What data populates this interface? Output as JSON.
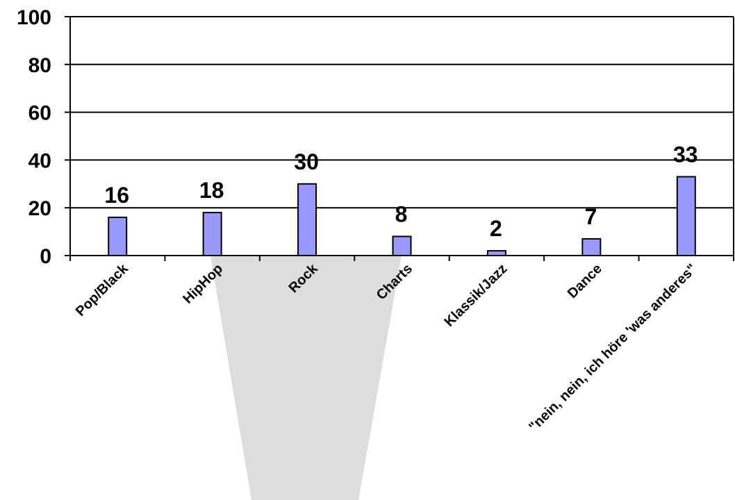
{
  "chart_data": {
    "type": "bar",
    "categories": [
      "Pop/Black",
      "HipHop",
      "Rock",
      "Charts",
      "Klassik/Jazz",
      "Dance",
      "\"nein, nein, ich höre 'was anderes\""
    ],
    "values": [
      16,
      18,
      30,
      8,
      2,
      7,
      33
    ],
    "data_labels": [
      "16",
      "18",
      "30",
      "8",
      "2",
      "7",
      "33"
    ],
    "title": "",
    "xlabel": "",
    "ylabel": "",
    "ylim": [
      0,
      100
    ],
    "yticks": [
      "0",
      "20",
      "40",
      "60",
      "80",
      "100"
    ],
    "grid": true,
    "legend": "none"
  },
  "colors": {
    "bar_fill": "#9999FF",
    "bar_stroke": "#000000",
    "axis": "#000000",
    "background": "#FFFFFF",
    "overlay": "#DDDDDD"
  }
}
